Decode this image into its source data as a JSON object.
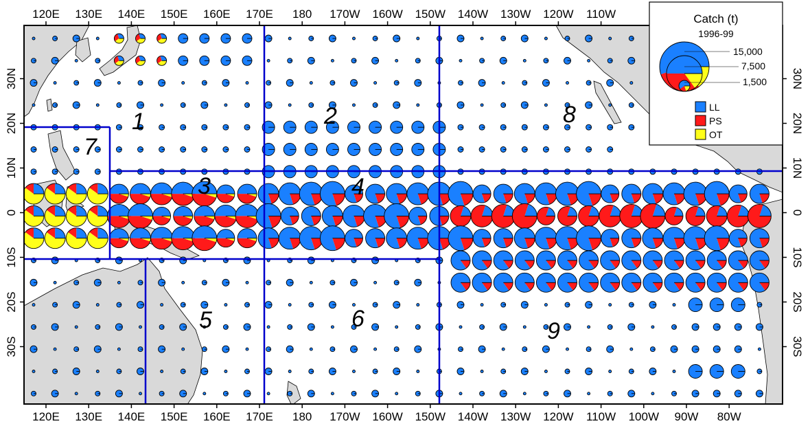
{
  "map": {
    "top_lon_labels": [
      "120E",
      "130E",
      "140E",
      "150E",
      "160E",
      "170E",
      "180",
      "170W",
      "160W",
      "150W",
      "140W",
      "130W",
      "120W",
      "110W"
    ],
    "bottom_lon_labels": [
      "120E",
      "130E",
      "140E",
      "150E",
      "160E",
      "170E",
      "180",
      "170W",
      "160W",
      "150W",
      "140W",
      "130W",
      "120W",
      "110W",
      "100W",
      "90W",
      "80W"
    ],
    "lat_labels": [
      "30N",
      "20N",
      "10N",
      "0",
      "10S",
      "20S",
      "30S"
    ],
    "region_labels": [
      "1",
      "2",
      "3",
      "4",
      "5",
      "6",
      "7",
      "8",
      "9"
    ]
  },
  "legend": {
    "title": "Catch (t)",
    "period": "1996-99",
    "size_values": [
      "15,000",
      "7,500",
      "1,500"
    ],
    "series": [
      {
        "code": "LL",
        "color": "#1a80ff"
      },
      {
        "code": "PS",
        "color": "#ff1a1a"
      },
      {
        "code": "OT",
        "color": "#ffff1a"
      }
    ]
  },
  "colors": {
    "land": "#d9d9d9",
    "region_line": "#0000cc",
    "LL": "#1a80ff",
    "PS": "#ff1a1a",
    "OT": "#ffff1a"
  }
}
